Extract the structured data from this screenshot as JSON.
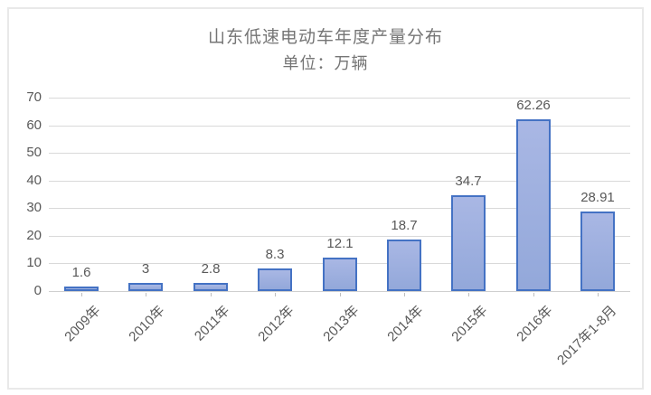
{
  "chart_data": {
    "type": "bar",
    "title": "山东低速电动车年度产量分布",
    "subtitle": "单位：万辆",
    "categories": [
      "2009年",
      "2010年",
      "2011年",
      "2012年",
      "2013年",
      "2014年",
      "2015年",
      "2016年",
      "2017年1-8月"
    ],
    "values": [
      1.6,
      3,
      2.8,
      8.3,
      12.1,
      18.7,
      34.7,
      62.26,
      28.91
    ],
    "data_labels": [
      "1.6",
      "3",
      "2.8",
      "8.3",
      "12.1",
      "18.7",
      "34.7",
      "62.26",
      "28.91"
    ],
    "xlabel": "",
    "ylabel": "",
    "ylim": [
      0,
      70
    ],
    "yticks": [
      0,
      10,
      20,
      30,
      40,
      50,
      60,
      70
    ],
    "grid": true,
    "legend_position": "none",
    "colors": {
      "bar_fill": "#9fb0de",
      "bar_border": "#4472c4",
      "gridline": "#d9d9d9",
      "text": "#595959",
      "title_text": "#757575",
      "frame_border": "#e9e9e9",
      "background": "#ffffff"
    }
  }
}
